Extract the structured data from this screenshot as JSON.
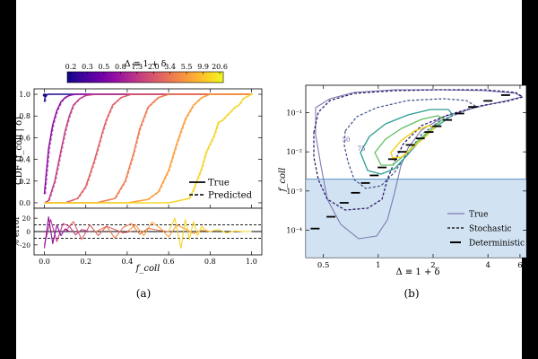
{
  "chart_data": [
    {
      "type": "line",
      "panel_caption": "(a)",
      "colorbar": {
        "label": "Δ ≡ 1 + δ",
        "ticks": [
          "0.2",
          "0.3",
          "0.5",
          "0.8",
          "1.3",
          "2.0",
          "3.4",
          "5.5",
          "9.9",
          "20.6"
        ],
        "colors": [
          "#0d0887",
          "#41049d",
          "#6a00a8",
          "#8f0da4",
          "#b12a90",
          "#cc4778",
          "#e16462",
          "#f2844b",
          "#fca636",
          "#fcce25",
          "#f0f921"
        ]
      },
      "main": {
        "ylabel": "CDF (f_coll | δ)",
        "xlabel": "f_coll",
        "xlim": [
          -0.05,
          1.05
        ],
        "ylim": [
          -0.05,
          1.05
        ],
        "x_ticks": [
          "0.0",
          "0.2",
          "0.4",
          "0.6",
          "0.8",
          "1.0"
        ],
        "x_tick_values": [
          0,
          0.2,
          0.4,
          0.6,
          0.8,
          1.0
        ],
        "y_ticks": [
          "0.0",
          "0.2",
          "0.4",
          "0.6",
          "0.8",
          "1.0"
        ],
        "y_tick_values": [
          0,
          0.2,
          0.4,
          0.6,
          0.8,
          1.0
        ],
        "legend": {
          "true": "True",
          "predicted": "Predicted",
          "position": "lower-right"
        },
        "series": [
          {
            "name": "Δ=0.2",
            "color": "#1f0c8f",
            "x": [
              0.0,
              0.002,
              0.005,
              0.01,
              0.02,
              0.05,
              0.1,
              0.2,
              1.0
            ],
            "y": [
              0.93,
              0.96,
              0.985,
              0.995,
              1.0,
              1.0,
              1.0,
              1.0,
              1.0
            ]
          },
          {
            "name": "Δ=0.5",
            "color": "#8f0da4",
            "x": [
              0.0,
              0.01,
              0.02,
              0.04,
              0.06,
              0.08,
              0.1,
              0.12,
              0.15,
              1.0
            ],
            "y": [
              0.08,
              0.3,
              0.5,
              0.72,
              0.85,
              0.93,
              0.97,
              0.99,
              1.0,
              1.0
            ]
          },
          {
            "name": "Δ=0.8",
            "color": "#c03b84",
            "x": [
              0.0,
              0.02,
              0.05,
              0.08,
              0.1,
              0.12,
              0.14,
              0.17,
              0.2,
              0.25,
              1.0
            ],
            "y": [
              0.0,
              0.02,
              0.2,
              0.48,
              0.66,
              0.8,
              0.9,
              0.96,
              0.99,
              1.0,
              1.0
            ]
          },
          {
            "name": "Δ=1.3",
            "color": "#dd5f66",
            "x": [
              0.0,
              0.1,
              0.16,
              0.2,
              0.24,
              0.28,
              0.3,
              0.33,
              0.37,
              0.42,
              1.0
            ],
            "y": [
              0.0,
              0.0,
              0.04,
              0.15,
              0.38,
              0.65,
              0.77,
              0.9,
              0.97,
              1.0,
              1.0
            ]
          },
          {
            "name": "Δ=2.0",
            "color": "#ef7a4f",
            "x": [
              0.0,
              0.25,
              0.34,
              0.39,
              0.43,
              0.46,
              0.5,
              0.55,
              0.6,
              1.0
            ],
            "y": [
              0.0,
              0.0,
              0.04,
              0.2,
              0.45,
              0.68,
              0.88,
              0.97,
              1.0,
              1.0
            ]
          },
          {
            "name": "Δ=3.4",
            "color": "#fb9e3b",
            "x": [
              0.0,
              0.4,
              0.5,
              0.55,
              0.6,
              0.64,
              0.68,
              0.72,
              0.76,
              0.8,
              1.0
            ],
            "y": [
              0.0,
              0.0,
              0.03,
              0.1,
              0.3,
              0.55,
              0.77,
              0.9,
              0.97,
              1.0,
              1.0
            ]
          },
          {
            "name": "Δ=9.9",
            "color": "#f5d52a",
            "x": [
              0.0,
              0.6,
              0.7,
              0.72,
              0.74,
              0.76,
              0.78,
              0.8,
              0.82,
              0.84,
              0.86,
              0.88,
              0.9,
              0.92,
              0.94,
              0.96,
              1.0
            ],
            "y": [
              0.0,
              0.0,
              0.04,
              0.12,
              0.22,
              0.32,
              0.46,
              0.54,
              0.62,
              0.74,
              0.76,
              0.8,
              0.84,
              0.88,
              0.9,
              0.96,
              1.0
            ]
          }
        ]
      },
      "residual": {
        "ylabel": "% error",
        "ylim": [
          -35,
          35
        ],
        "y_ticks": [
          "-20",
          "0",
          "20"
        ],
        "y_tick_values": [
          -20,
          0,
          20
        ],
        "reference_lines": [
          0,
          10,
          -10
        ],
        "x": [
          0.0,
          0.05,
          0.1,
          0.15,
          0.2,
          0.25,
          0.3,
          0.35,
          0.4,
          0.45,
          0.5,
          0.55,
          0.6,
          0.65,
          0.7,
          0.75,
          0.8,
          0.85,
          0.9,
          0.95,
          1.0
        ],
        "y": [
          -5,
          15,
          -20,
          10,
          -8,
          12,
          -15,
          5,
          -10,
          8,
          -6,
          12,
          -4,
          15,
          6,
          10,
          -3,
          2,
          0,
          0,
          0
        ],
        "series": [
          {
            "color": "#f5d52a",
            "x": [
              0.6,
              0.63,
              0.66,
              0.68,
              0.7,
              0.72,
              0.74,
              0.76,
              0.78,
              0.8,
              0.84,
              0.88,
              0.92,
              0.96,
              1.0
            ],
            "y": [
              0,
              20,
              -25,
              18,
              -12,
              15,
              -6,
              8,
              2,
              0,
              3,
              -2,
              1,
              0,
              0
            ]
          },
          {
            "color": "#fb9e3b",
            "x": [
              0.4,
              0.44,
              0.48,
              0.52,
              0.56,
              0.6,
              0.64,
              0.68,
              0.72,
              0.76,
              0.8
            ],
            "y": [
              0,
              10,
              -6,
              14,
              5,
              -8,
              10,
              4,
              -3,
              2,
              0
            ]
          },
          {
            "color": "#ef7a4f",
            "x": [
              0.25,
              0.3,
              0.34,
              0.38,
              0.42,
              0.46,
              0.5,
              0.55,
              0.6
            ],
            "y": [
              0,
              8,
              -10,
              6,
              12,
              -4,
              5,
              2,
              0
            ]
          },
          {
            "color": "#dd5f66",
            "x": [
              0.1,
              0.14,
              0.18,
              0.22,
              0.26,
              0.3,
              0.34,
              0.38,
              0.42
            ],
            "y": [
              0,
              15,
              -12,
              10,
              -6,
              8,
              3,
              -2,
              0
            ]
          },
          {
            "color": "#c03b84",
            "x": [
              0.0,
              0.03,
              0.06,
              0.09,
              0.12,
              0.15,
              0.18,
              0.22
            ],
            "y": [
              -20,
              18,
              -15,
              12,
              8,
              -5,
              3,
              0
            ]
          },
          {
            "color": "#8f0da4",
            "x": [
              0.0,
              0.02,
              0.04,
              0.06,
              0.08,
              0.1,
              0.12
            ],
            "y": [
              -25,
              22,
              -18,
              10,
              -6,
              4,
              0
            ]
          }
        ]
      }
    },
    {
      "type": "contour",
      "panel_caption": "(b)",
      "xlabel": "Δ ≡ 1 + δ",
      "ylabel": "f_coll",
      "x_scale": "log",
      "y_scale": "log",
      "xlim": [
        0.4,
        6.5
      ],
      "ylim": [
        2e-05,
        0.5
      ],
      "x_ticks": [
        "0.5",
        "1",
        "2",
        "4",
        "6"
      ],
      "x_tick_values": [
        0.5,
        1,
        2,
        4,
        6
      ],
      "y_ticks": [
        "10⁻⁴",
        "10⁻³",
        "10⁻²",
        "10⁻¹"
      ],
      "y_tick_values": [
        0.0001,
        0.001,
        0.01,
        0.1
      ],
      "shaded_region_below": 0.002,
      "shade_color": "#c6dbef",
      "legend": {
        "true": "True",
        "stochastic": "Stochastic",
        "deterministic": "Deterministic",
        "position": "lower-right"
      },
      "contour_labels": [
        "50",
        "75"
      ],
      "deterministic_points": {
        "x": [
          0.45,
          0.55,
          0.65,
          0.75,
          0.85,
          0.95,
          1.05,
          1.2,
          1.35,
          1.5,
          1.7,
          1.9,
          2.1,
          2.4,
          2.8,
          3.3,
          4.0,
          5.0
        ],
        "y": [
          0.00011,
          0.00022,
          0.0005,
          0.0009,
          0.0016,
          0.0025,
          0.004,
          0.0065,
          0.01,
          0.015,
          0.022,
          0.032,
          0.045,
          0.065,
          0.095,
          0.14,
          0.2,
          0.28
        ]
      }
    }
  ]
}
